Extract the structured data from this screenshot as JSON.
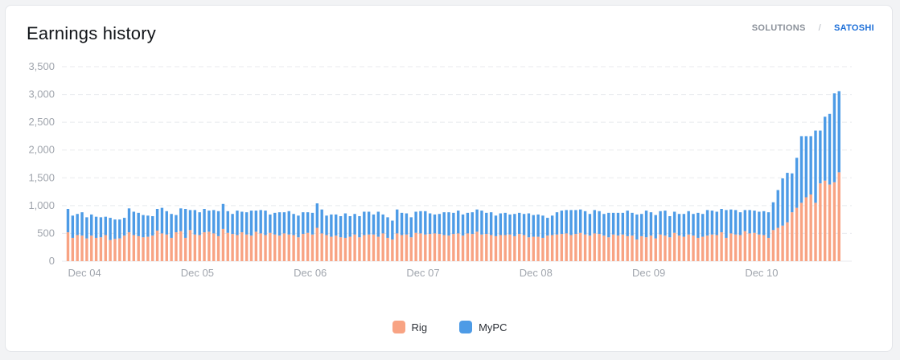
{
  "header": {
    "title": "Earnings history",
    "tabs": [
      {
        "label": "SOLUTIONS",
        "active": false
      },
      {
        "label": "SATOSHI",
        "active": true
      }
    ],
    "separator": "/"
  },
  "colors": {
    "rig": "#f8a383",
    "mypc": "#4d9be6",
    "grid": "#e8eaee",
    "axis_text": "#a0a5ad",
    "active_tab": "#1d6fd8"
  },
  "chart_data": {
    "type": "bar",
    "stacked": true,
    "title": "Earnings history",
    "xlabel": "",
    "ylabel": "",
    "ylim": [
      0,
      3500
    ],
    "yticks": [
      "0",
      "500",
      "1,000",
      "1,500",
      "2,000",
      "2,500",
      "3,000",
      "3,500"
    ],
    "xtick_labels": [
      "Dec 04",
      "Dec 05",
      "Dec 06",
      "Dec 07",
      "Dec 08",
      "Dec 09",
      "Dec 10"
    ],
    "bars_per_day": 24,
    "grid": true,
    "legend_position": "bottom",
    "series": [
      {
        "name": "Rig",
        "values": [
          520,
          420,
          470,
          460,
          410,
          460,
          420,
          430,
          470,
          380,
          400,
          410,
          460,
          520,
          470,
          450,
          430,
          440,
          460,
          550,
          500,
          480,
          420,
          520,
          540,
          420,
          560,
          480,
          470,
          520,
          530,
          500,
          450,
          580,
          510,
          490,
          470,
          520,
          480,
          460,
          530,
          500,
          470,
          510,
          480,
          460,
          500,
          480,
          470,
          430,
          490,
          510,
          480,
          600,
          500,
          470,
          440,
          460,
          430,
          420,
          440,
          480,
          430,
          470,
          480,
          480,
          440,
          500,
          420,
          390,
          500,
          470,
          480,
          430,
          510,
          500,
          480,
          490,
          500,
          490,
          470,
          460,
          490,
          500,
          460,
          500,
          490,
          530,
          480,
          490,
          470,
          450,
          470,
          470,
          480,
          450,
          490,
          470,
          430,
          440,
          440,
          420,
          460,
          470,
          480,
          490,
          500,
          470,
          490,
          510,
          480,
          460,
          500,
          490,
          460,
          430,
          480,
          460,
          480,
          450,
          460,
          390,
          450,
          430,
          460,
          410,
          480,
          460,
          430,
          510,
          460,
          440,
          480,
          460,
          420,
          440,
          460,
          480,
          470,
          520,
          420,
          500,
          480,
          470,
          540,
          500,
          510,
          480,
          470,
          420,
          560,
          600,
          640,
          700,
          880,
          960,
          1050,
          1150,
          1200,
          1050,
          1400,
          1450,
          1380,
          1420,
          1600
        ],
        "color": "#f8a383"
      },
      {
        "name": "MyPC",
        "values": [
          420,
          400,
          380,
          420,
          380,
          380,
          380,
          360,
          330,
          400,
          350,
          340,
          320,
          430,
          420,
          420,
          400,
          380,
          350,
          390,
          460,
          420,
          430,
          310,
          410,
          520,
          360,
          440,
          410,
          420,
          380,
          420,
          450,
          450,
          390,
          360,
          440,
          370,
          400,
          450,
          380,
          420,
          440,
          330,
          390,
          420,
          380,
          420,
          380,
          390,
          390,
          370,
          390,
          440,
          430,
          350,
          400,
          380,
          380,
          440,
          370,
          370,
          380,
          420,
          410,
          360,
          450,
          340,
          370,
          340,
          430,
          400,
          380,
          360,
          380,
          400,
          420,
          370,
          340,
          360,
          410,
          420,
          380,
          410,
          380,
          370,
          390,
          400,
          430,
          380,
          410,
          370,
          390,
          400,
          360,
          400,
          380,
          380,
          430,
          390,
          400,
          400,
          320,
          350,
          400,
          420,
          420,
          450,
          430,
          420,
          420,
          390,
          420,
          410,
          390,
          440,
          390,
          410,
          390,
          460,
          410,
          450,
          400,
          480,
          420,
          420,
          420,
          450,
          380,
          380,
          390,
          410,
          420,
          390,
          450,
          410,
          460,
          430,
          420,
          420,
          500,
          430,
          440,
          410,
          380,
          420,
          400,
          410,
          430,
          460,
          500,
          680,
          850,
          890,
          700,
          900,
          1200,
          1100,
          1050,
          1300,
          950,
          1150,
          1270,
          1600,
          1460
        ],
        "color": "#4d9be6"
      }
    ]
  }
}
